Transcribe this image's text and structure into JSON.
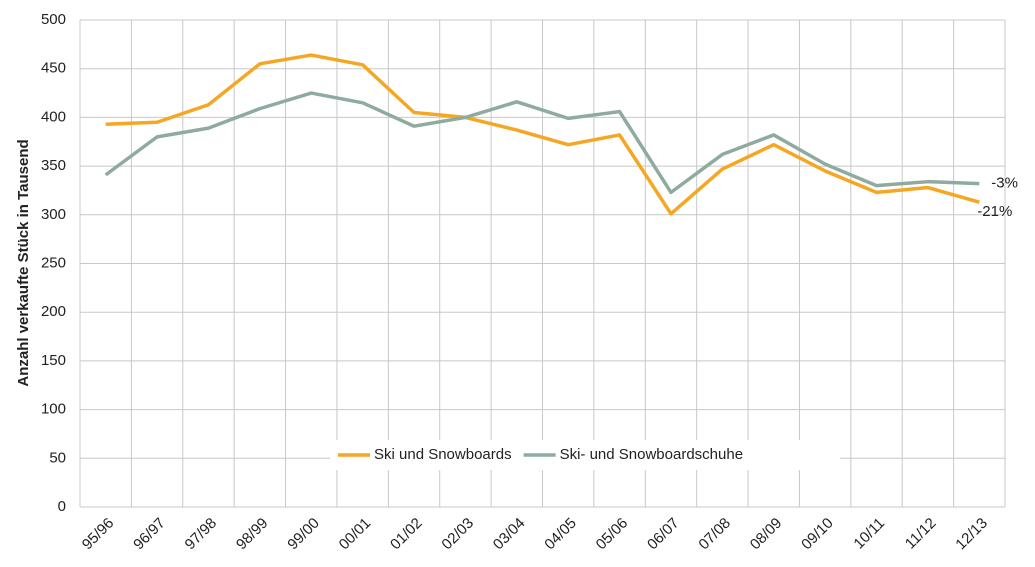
{
  "chart_data": {
    "type": "line",
    "y_label": "Anzahl verkaufte Stück in Tausend",
    "categories": [
      "95/96",
      "96/97",
      "97/98",
      "98/99",
      "99/00",
      "00/01",
      "01/02",
      "02/03",
      "03/04",
      "04/05",
      "05/06",
      "06/07",
      "07/08",
      "08/09",
      "09/10",
      "10/11",
      "11/12",
      "12/13"
    ],
    "series": [
      {
        "name": "Ski und Snowboards",
        "color": "#f5a623",
        "values": [
          393,
          395,
          413,
          455,
          464,
          454,
          405,
          400,
          387,
          372,
          382,
          301,
          347,
          372,
          345,
          323,
          328,
          313
        ]
      },
      {
        "name": "Ski- und Snowboardschuhe",
        "color": "#8fab9f",
        "values": [
          341,
          380,
          389,
          409,
          425,
          415,
          391,
          400,
          416,
          399,
          406,
          323,
          362,
          382,
          352,
          330,
          334,
          332
        ]
      }
    ],
    "annotations": [
      "-21%",
      "-3%"
    ],
    "ylim": [
      0,
      500
    ],
    "yticks": [
      0,
      50,
      100,
      150,
      200,
      250,
      300,
      350,
      400,
      450,
      500
    ],
    "grid": true
  }
}
